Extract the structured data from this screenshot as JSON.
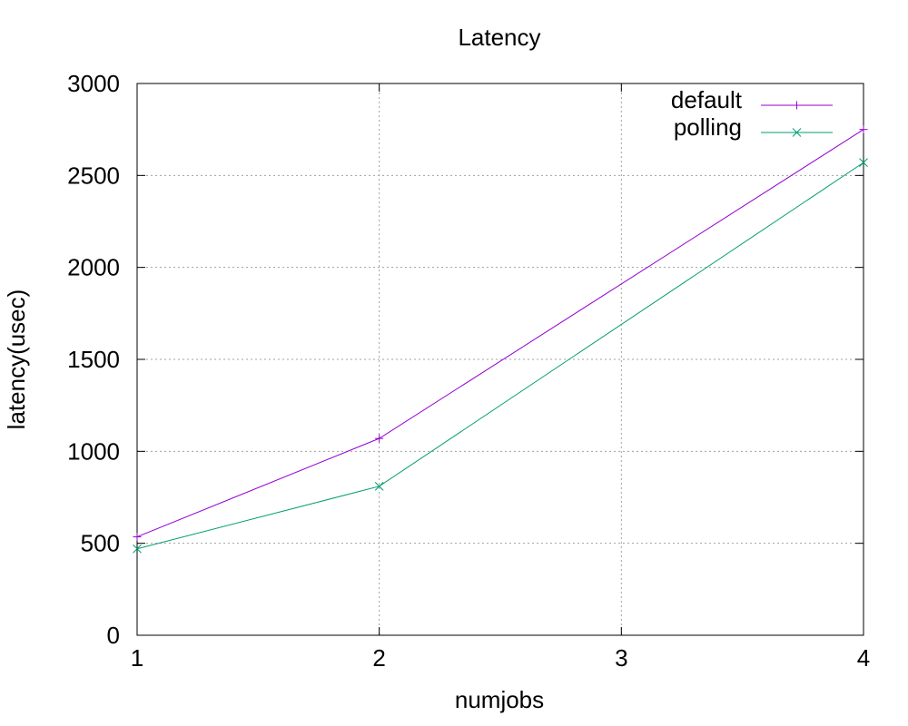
{
  "chart_data": {
    "type": "line",
    "title": "Latency",
    "xlabel": "numjobs",
    "ylabel": "latency(usec)",
    "x": [
      1,
      2,
      3,
      4
    ],
    "xticks": [
      "1",
      "2",
      "3",
      "4"
    ],
    "xlim": [
      1,
      4
    ],
    "ylim": [
      0,
      3000
    ],
    "yticks": [
      "0",
      "500",
      "1000",
      "1500",
      "2000",
      "2500",
      "3000"
    ],
    "grid": true,
    "legend_position": "top-right",
    "series": [
      {
        "name": "default",
        "x": [
          1,
          2,
          4
        ],
        "values": [
          535,
          1070,
          2750
        ],
        "color": "#9400d3",
        "marker": "plus"
      },
      {
        "name": "polling",
        "x": [
          1,
          2,
          4
        ],
        "values": [
          470,
          810,
          2570
        ],
        "color": "#009e73",
        "marker": "cross"
      }
    ]
  }
}
